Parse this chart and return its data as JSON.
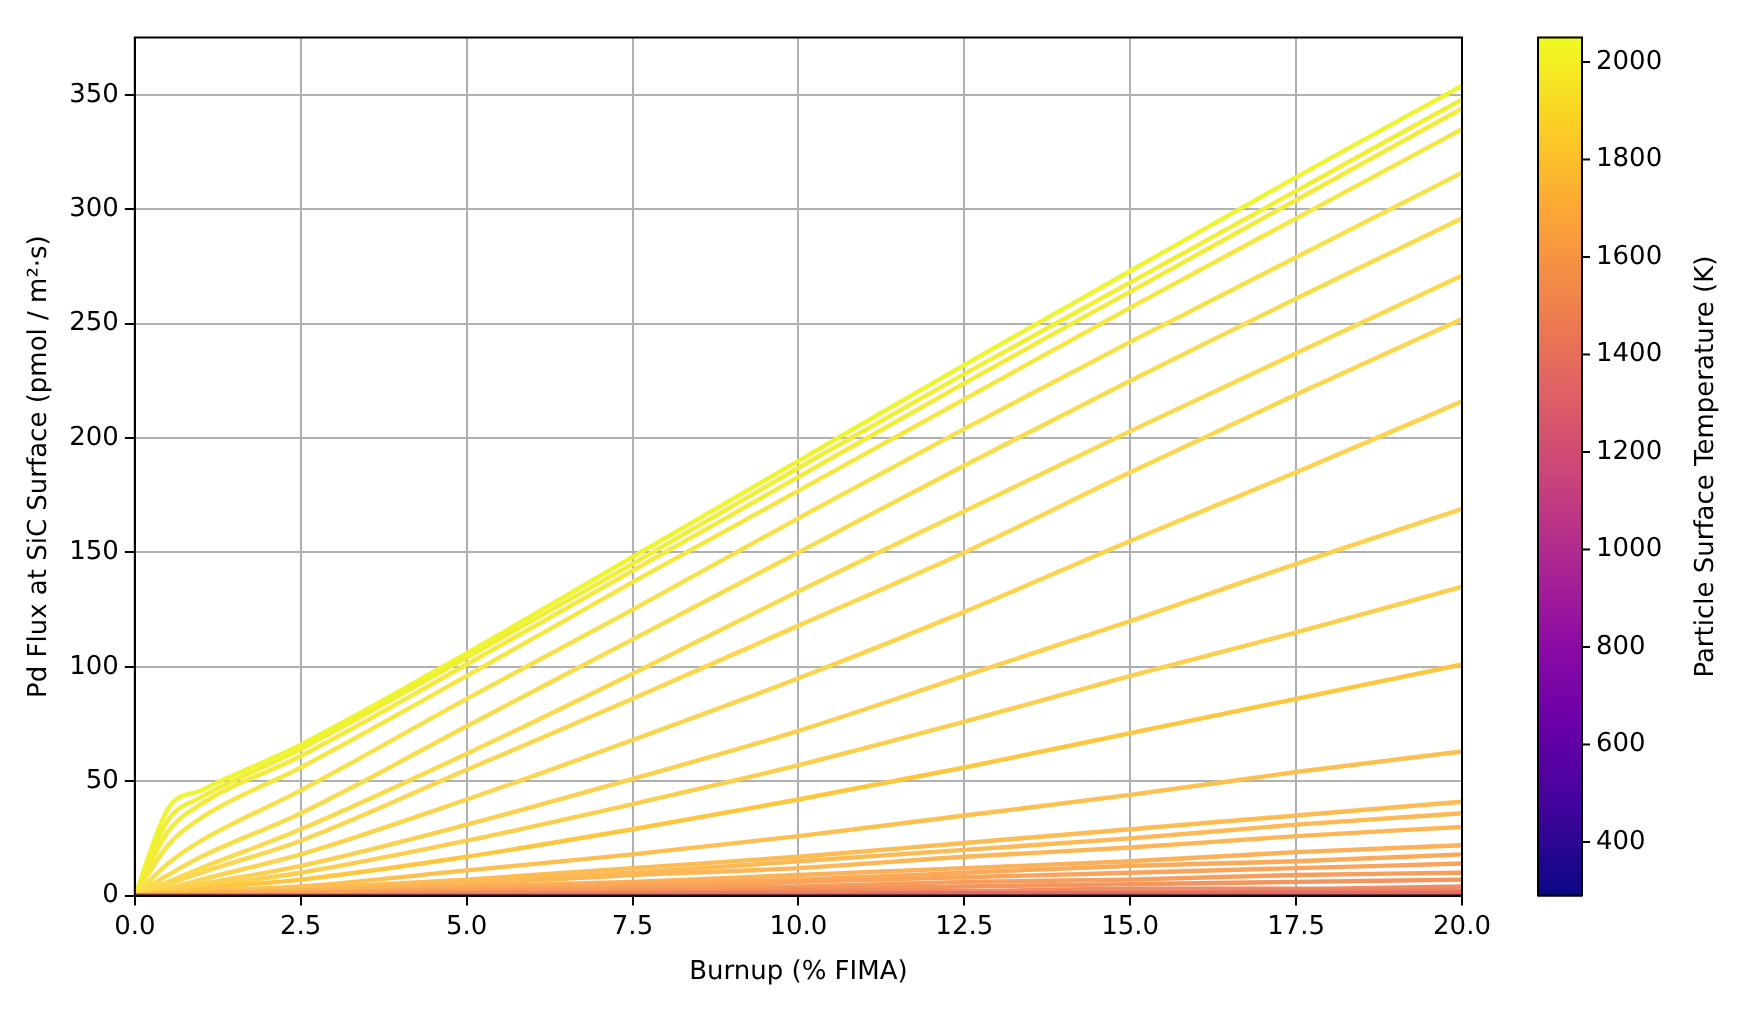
{
  "chart_data": {
    "type": "line",
    "xlabel": "Burnup (% FIMA)",
    "ylabel": "Pd Flux at SiC Surface (pmol / m²·s)",
    "clabel": "Particle Surface Temperature (K)",
    "x": [
      0,
      0.5,
      1,
      2.5,
      5,
      7.5,
      10,
      12.5,
      15,
      17.5,
      20
    ],
    "xlim": [
      0,
      20
    ],
    "xticks": [
      {
        "value": 0,
        "label": "0.0"
      },
      2.5,
      {
        "value": 5,
        "label": "5.0"
      },
      7.5,
      {
        "value": 10,
        "label": "10.0"
      },
      12.5,
      {
        "value": 15,
        "label": "15.0"
      },
      17.5,
      {
        "value": 20,
        "label": "20.0"
      }
    ],
    "ylim": [
      0,
      375
    ],
    "yticks": [
      0,
      50,
      100,
      150,
      200,
      250,
      300,
      350
    ],
    "clim": [
      290,
      2050
    ],
    "cticks": [
      400,
      600,
      800,
      1000,
      1200,
      1400,
      1600,
      1800,
      2000
    ],
    "grid": true,
    "legend": false,
    "marker": "none",
    "line_style": "solid",
    "series": [
      {
        "color": "#e06d6a",
        "values": [
          0,
          0,
          0,
          0,
          0,
          0,
          0,
          1,
          1,
          1,
          1
        ]
      },
      {
        "color": "#ec7c66",
        "values": [
          0,
          0,
          0,
          0,
          0,
          1,
          1,
          1,
          1,
          2,
          2
        ]
      },
      {
        "color": "#f18a62",
        "values": [
          0,
          0,
          0,
          0,
          1,
          1,
          2,
          2,
          3,
          3,
          4
        ]
      },
      {
        "color": "#f5955e",
        "values": [
          0,
          0,
          0,
          0,
          1,
          2,
          3,
          4,
          5,
          6,
          7
        ]
      },
      {
        "color": "#f89e5b",
        "values": [
          0,
          0,
          0,
          1,
          2,
          3,
          4,
          6,
          7,
          9,
          10
        ]
      },
      {
        "color": "#f9a45a",
        "values": [
          0,
          0,
          0,
          1,
          3,
          4,
          6,
          8,
          10,
          12,
          14
        ]
      },
      {
        "color": "#fbab58",
        "values": [
          0,
          0,
          1,
          1,
          3,
          5,
          7,
          10,
          13,
          15,
          18
        ]
      },
      {
        "color": "#fcb057",
        "values": [
          0,
          0,
          1,
          2,
          4,
          6,
          9,
          12,
          15,
          19,
          22
        ]
      },
      {
        "color": "#fdb655",
        "values": [
          0,
          0,
          1,
          2,
          5,
          9,
          12,
          17,
          21,
          26,
          30
        ]
      },
      {
        "color": "#fdba54",
        "values": [
          0,
          1,
          1,
          2,
          6,
          10,
          15,
          20,
          25,
          31,
          36
        ]
      },
      {
        "color": "#fdbc52",
        "values": [
          0,
          1,
          1,
          3,
          7,
          12,
          17,
          23,
          29,
          35,
          41
        ]
      },
      {
        "color": "#fdc050",
        "values": [
          0,
          1,
          2,
          4,
          11,
          18,
          26,
          35,
          44,
          54,
          63
        ]
      },
      {
        "color": "#fdc63e",
        "values": [
          0,
          1,
          3,
          7,
          17,
          29,
          42,
          56,
          71,
          86,
          101
        ]
      },
      {
        "color": "#fcce4e",
        "values": [
          0,
          2,
          4,
          10,
          24,
          40,
          57,
          76,
          96,
          115,
          135
        ]
      },
      {
        "color": "#fcd04e",
        "values": [
          0,
          2,
          5,
          13,
          31,
          51,
          72,
          96,
          120,
          145,
          169
        ]
      },
      {
        "color": "#fcd34e",
        "values": [
          0,
          3,
          7,
          18,
          42,
          68,
          95,
          124,
          155,
          185,
          216
        ]
      },
      {
        "color": "#fbd64e",
        "values": [
          0,
          5,
          10,
          24,
          55,
          86,
          118,
          150,
          185,
          219,
          252
        ]
      },
      {
        "color": "#fad94d",
        "values": [
          0,
          6,
          12,
          29,
          62,
          97,
          133,
          168,
          203,
          237,
          271
        ]
      },
      {
        "color": "#f9dc4b",
        "values": [
          0,
          9,
          17,
          36,
          74,
          112,
          150,
          188,
          225,
          261,
          296
        ]
      },
      {
        "color": "#f8e048",
        "values": [
          0,
          14,
          24,
          46,
          86,
          125,
          165,
          204,
          242,
          279,
          316
        ]
      },
      {
        "color": "#f6e640",
        "values": [
          0,
          22,
          34,
          56,
          96,
          137,
          177,
          217,
          257,
          296,
          335
        ]
      },
      {
        "color": "#f3eb38",
        "values": [
          0,
          28,
          40,
          61,
          101,
          142,
          183,
          224,
          264,
          304,
          344
        ]
      },
      {
        "color": "#f1ef33",
        "values": [
          0,
          33,
          43,
          64,
          104,
          145,
          187,
          228,
          268,
          308,
          348
        ]
      },
      {
        "color": "#eef52e",
        "values": [
          0,
          38,
          46,
          66,
          106,
          148,
          190,
          232,
          273,
          314,
          354
        ]
      }
    ]
  }
}
